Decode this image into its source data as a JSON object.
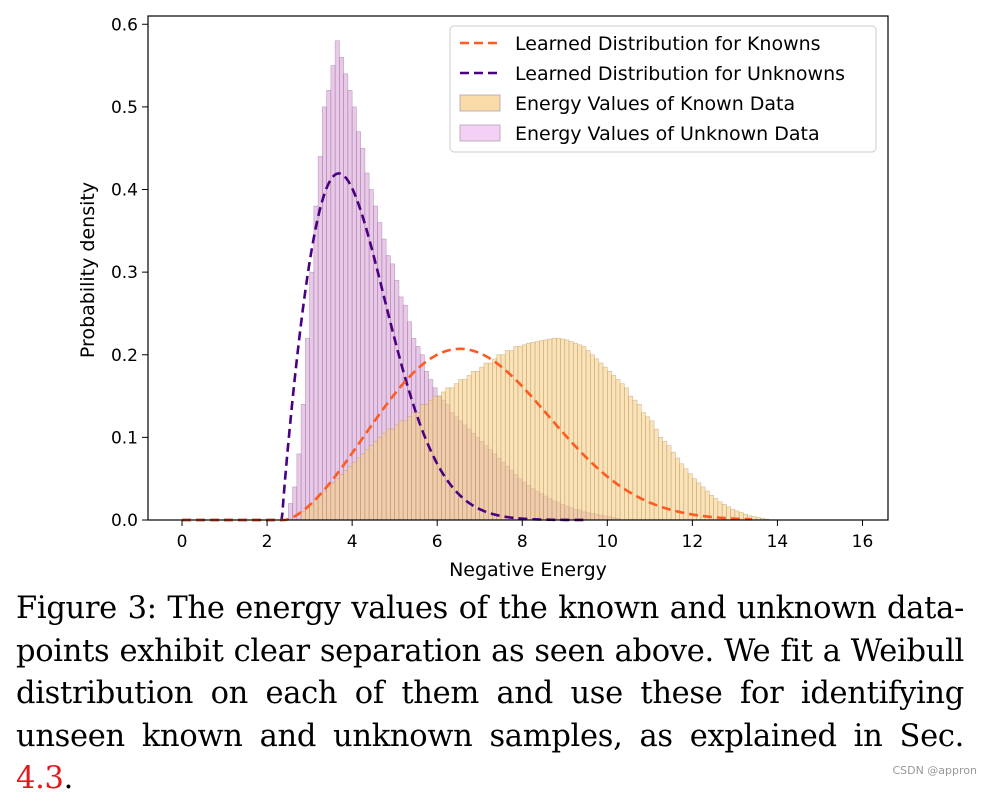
{
  "chart_data": {
    "type": "histogram",
    "xlabel": "Negative Energy",
    "ylabel": "Probability density",
    "xlim": [
      -0.8,
      16.6
    ],
    "ylim": [
      0,
      0.61
    ],
    "xticks": [
      "0",
      "2",
      "4",
      "6",
      "8",
      "10",
      "12",
      "14",
      "16"
    ],
    "xtick_values": [
      0,
      2,
      4,
      6,
      8,
      10,
      12,
      14,
      16
    ],
    "yticks": [
      "0.0",
      "0.1",
      "0.2",
      "0.3",
      "0.4",
      "0.5",
      "0.6"
    ],
    "ytick_values": [
      0,
      0.1,
      0.2,
      0.3,
      0.4,
      0.5,
      0.6
    ],
    "legend_position": "top-right",
    "legend": [
      {
        "label": "Learned Distribution for Knowns",
        "style": "dashed-line",
        "color": "#ff5a1f"
      },
      {
        "label": "Learned Distribution for Unknowns",
        "style": "dashed-line",
        "color": "#4b0082"
      },
      {
        "label": "Energy Values of Known Data",
        "style": "patch",
        "color": "#f7cf8a"
      },
      {
        "label": "Energy Values of Unknown Data",
        "style": "patch",
        "color": "#f0c0f0"
      }
    ],
    "series": [
      {
        "name": "Energy Values of Unknown Data",
        "kind": "histogram",
        "color": "#d9a6d9",
        "edge": "#8c5a8c",
        "bin_width": 0.1,
        "x_start": 2.5,
        "values": [
          0.02,
          0.04,
          0.08,
          0.14,
          0.22,
          0.3,
          0.38,
          0.44,
          0.5,
          0.52,
          0.55,
          0.58,
          0.56,
          0.54,
          0.52,
          0.5,
          0.47,
          0.45,
          0.42,
          0.4,
          0.38,
          0.36,
          0.34,
          0.32,
          0.31,
          0.29,
          0.27,
          0.26,
          0.24,
          0.22,
          0.21,
          0.2,
          0.18,
          0.17,
          0.16,
          0.15,
          0.145,
          0.14,
          0.13,
          0.125,
          0.12,
          0.115,
          0.11,
          0.105,
          0.1,
          0.095,
          0.09,
          0.085,
          0.08,
          0.075,
          0.07,
          0.065,
          0.06,
          0.055,
          0.05,
          0.046,
          0.042,
          0.038,
          0.035,
          0.032,
          0.029,
          0.026,
          0.023,
          0.021,
          0.019,
          0.017,
          0.015,
          0.013,
          0.012,
          0.01,
          0.009,
          0.008,
          0.007,
          0.006,
          0.005,
          0.004,
          0.003,
          0.002
        ]
      },
      {
        "name": "Energy Values of Known Data",
        "kind": "histogram",
        "color": "#f7cf8a",
        "edge": "#b08a4a",
        "bin_width": 0.1,
        "x_start": 2.8,
        "values": [
          0.01,
          0.015,
          0.02,
          0.025,
          0.03,
          0.035,
          0.04,
          0.045,
          0.05,
          0.055,
          0.06,
          0.065,
          0.07,
          0.075,
          0.08,
          0.085,
          0.09,
          0.095,
          0.1,
          0.105,
          0.11,
          0.11,
          0.115,
          0.12,
          0.12,
          0.125,
          0.13,
          0.13,
          0.14,
          0.14,
          0.145,
          0.15,
          0.15,
          0.155,
          0.16,
          0.16,
          0.165,
          0.17,
          0.17,
          0.175,
          0.18,
          0.18,
          0.185,
          0.19,
          0.19,
          0.195,
          0.2,
          0.2,
          0.205,
          0.205,
          0.21,
          0.21,
          0.212,
          0.214,
          0.215,
          0.216,
          0.217,
          0.218,
          0.219,
          0.22,
          0.22,
          0.219,
          0.218,
          0.216,
          0.214,
          0.212,
          0.21,
          0.205,
          0.2,
          0.195,
          0.19,
          0.185,
          0.18,
          0.175,
          0.17,
          0.165,
          0.16,
          0.15,
          0.145,
          0.14,
          0.13,
          0.125,
          0.12,
          0.11,
          0.1,
          0.095,
          0.09,
          0.082,
          0.075,
          0.068,
          0.062,
          0.056,
          0.05,
          0.045,
          0.04,
          0.035,
          0.03,
          0.026,
          0.022,
          0.019,
          0.016,
          0.013,
          0.011,
          0.009,
          0.007,
          0.005,
          0.004,
          0.003,
          0.002,
          0.001
        ]
      },
      {
        "name": "Learned Distribution for Unknowns",
        "kind": "weibull-curve",
        "color": "#4b0082",
        "loc": 2.35,
        "shape": 1.9,
        "scale": 1.98,
        "x_range": [
          0,
          9.5
        ]
      },
      {
        "name": "Learned Distribution for Knowns",
        "kind": "weibull-curve",
        "color": "#ff5a1f",
        "loc": 2.4,
        "shape": 2.58,
        "scale": 5.0,
        "x_range": [
          0,
          13.4
        ]
      }
    ]
  },
  "caption": {
    "text": "Figure 3: The energy values of the known and unknown data-points exhibit clear separation as seen above. We fit a Weibull distribution on each of them and use these for identifying unseen known and unknown samples, as explained in Sec. ",
    "ref": "4.3",
    "end": "."
  },
  "watermark": "CSDN @appron"
}
